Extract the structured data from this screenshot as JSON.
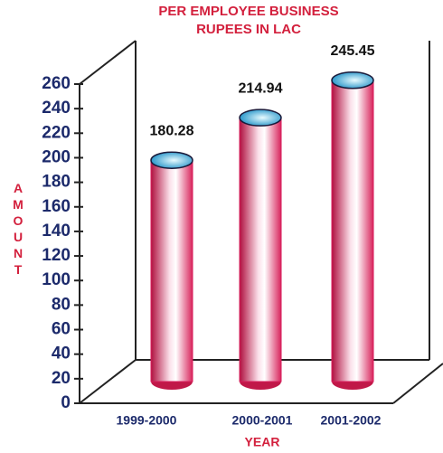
{
  "chart_data": {
    "type": "bar",
    "title": "PER EMPLOYEE BUSINESS",
    "subtitle": "RUPEES IN LAC",
    "y_label": "AMOUNT",
    "x_label": "YEAR",
    "categories": [
      "1999-2000",
      "2000-2001",
      "2001-2002"
    ],
    "values": [
      180.28,
      214.94,
      245.45
    ],
    "color": "#d81b5a",
    "top_color": "#2aa8d8",
    "ylim": [
      0,
      260
    ],
    "yticks": [
      0,
      20,
      40,
      60,
      80,
      100,
      120,
      140,
      160,
      180,
      200,
      220,
      240,
      260
    ],
    "grid": false
  }
}
